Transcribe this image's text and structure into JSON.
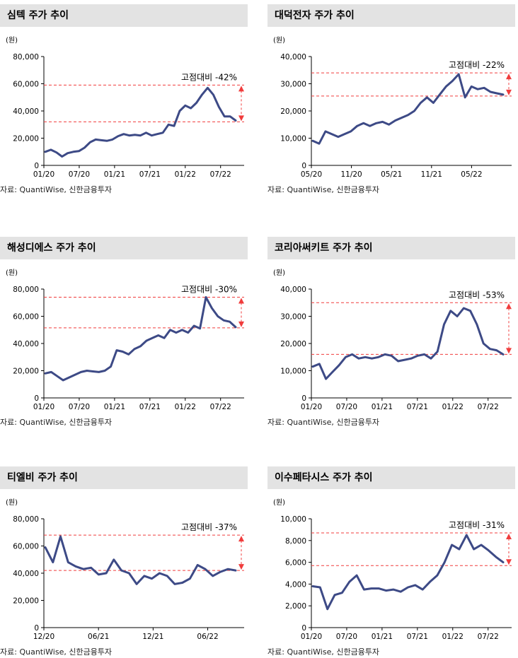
{
  "source": "자료: QuantiWise, 신한금융투자",
  "unit": "(원)",
  "colors": {
    "line": "#3d4a86",
    "ref": "#f03c3c",
    "title_bg": "#e3e3e3"
  },
  "chart_data": [
    {
      "type": "line",
      "title": "심텍 주가 추이",
      "ylim": [
        0,
        80000
      ],
      "yticks": [
        0,
        20000,
        40000,
        60000,
        80000
      ],
      "ytick_labels": [
        "0",
        "20,000",
        "40,000",
        "60,000",
        "80,000"
      ],
      "x_start": "2020-01",
      "x_end": "2022-11",
      "xticks": [
        "01/20",
        "07/20",
        "01/21",
        "07/21",
        "01/22",
        "07/22"
      ],
      "annotation": "고점대비 -42%",
      "ref_high": 59000,
      "ref_low": 32000,
      "series": [
        {
          "values": [
            10000,
            11500,
            9500,
            6500,
            9000,
            10000,
            10500,
            13000,
            17000,
            19000,
            18500,
            18000,
            19000,
            21500,
            23000,
            22000,
            22500,
            22000,
            24000,
            22000,
            23000,
            24000,
            30000,
            29000,
            40000,
            44000,
            42000,
            46000,
            52000,
            57000,
            52000,
            43000,
            36000,
            36000,
            33000
          ]
        }
      ]
    },
    {
      "type": "line",
      "title": "대덕전자 주가 추이",
      "ylim": [
        0,
        40000
      ],
      "yticks": [
        0,
        10000,
        20000,
        30000,
        40000
      ],
      "ytick_labels": [
        "0",
        "10,000",
        "20,000",
        "30,000",
        "40,000"
      ],
      "x_start": "2020-05",
      "x_end": "2022-11",
      "xticks": [
        "05/20",
        "11/20",
        "05/21",
        "11/21",
        "05/22"
      ],
      "annotation": "고점대비 -22%",
      "ref_high": 34000,
      "ref_low": 25500,
      "series": [
        {
          "values": [
            9000,
            8000,
            12500,
            11500,
            10500,
            11500,
            12500,
            14500,
            15500,
            14500,
            15500,
            16000,
            15000,
            16500,
            17500,
            18500,
            20000,
            23000,
            25000,
            23000,
            26000,
            29000,
            31000,
            33500,
            25000,
            29000,
            28000,
            28500,
            27000,
            26500,
            26000
          ]
        }
      ]
    },
    {
      "type": "line",
      "title": "해성디에스 주가 추이",
      "ylim": [
        0,
        80000
      ],
      "yticks": [
        0,
        20000,
        40000,
        60000,
        80000
      ],
      "ytick_labels": [
        "0",
        "20,000",
        "40,000",
        "60,000",
        "80,000"
      ],
      "x_start": "2020-01",
      "x_end": "2022-11",
      "xticks": [
        "01/20",
        "07/20",
        "01/21",
        "07/21",
        "01/22",
        "07/22"
      ],
      "annotation": "고점대비 -30%",
      "ref_high": 74000,
      "ref_low": 51500,
      "series": [
        {
          "values": [
            18000,
            19000,
            16000,
            13000,
            15000,
            17000,
            19000,
            20000,
            19500,
            19000,
            20000,
            23000,
            35000,
            34000,
            32000,
            36000,
            38000,
            42000,
            44000,
            46000,
            44000,
            50000,
            48000,
            50000,
            48000,
            53000,
            51000,
            74000,
            66000,
            60000,
            57000,
            56000,
            52000
          ]
        }
      ]
    },
    {
      "type": "line",
      "title": "코리아써키트 주가 추이",
      "ylim": [
        0,
        40000
      ],
      "yticks": [
        0,
        10000,
        20000,
        30000,
        40000
      ],
      "ytick_labels": [
        "0",
        "10,000",
        "20,000",
        "30,000",
        "40,000"
      ],
      "x_start": "2020-01",
      "x_end": "2022-11",
      "xticks": [
        "01/20",
        "07/20",
        "01/21",
        "07/21",
        "01/22",
        "07/22"
      ],
      "annotation": "고점대비 -53%",
      "ref_high": 35000,
      "ref_low": 16000,
      "series": [
        {
          "values": [
            11500,
            12500,
            7000,
            9500,
            12000,
            15000,
            16000,
            14500,
            15000,
            14500,
            15000,
            16000,
            15500,
            13500,
            14000,
            14500,
            15500,
            16000,
            14500,
            17000,
            27000,
            32000,
            30000,
            33000,
            32000,
            27000,
            20000,
            18000,
            17500,
            16000
          ]
        }
      ]
    },
    {
      "type": "line",
      "title": "티엘비 주가 추이",
      "ylim": [
        0,
        80000
      ],
      "yticks": [
        0,
        20000,
        40000,
        60000,
        80000
      ],
      "ytick_labels": [
        "0",
        "20,000",
        "40,000",
        "60,000",
        "80,000"
      ],
      "x_start": "2020-12",
      "x_end": "2022-10",
      "xticks": [
        "12/20",
        "06/21",
        "12/21",
        "06/22"
      ],
      "annotation": "고점대비 -37%",
      "ref_high": 68000,
      "ref_low": 42000,
      "series": [
        {
          "values": [
            59000,
            48000,
            67000,
            48000,
            45000,
            43000,
            44000,
            39000,
            40000,
            50000,
            42000,
            40000,
            32000,
            38000,
            36000,
            40000,
            38000,
            32000,
            33000,
            36000,
            46000,
            43000,
            38000,
            41000,
            43000,
            42000
          ]
        }
      ]
    },
    {
      "type": "line",
      "title": "이수페타시스 주가 추이",
      "ylim": [
        0,
        10000
      ],
      "yticks": [
        0,
        2000,
        4000,
        6000,
        8000,
        10000
      ],
      "ytick_labels": [
        "0",
        "2,000",
        "4,000",
        "6,000",
        "8,000",
        "10,000"
      ],
      "x_start": "2020-01",
      "x_end": "2022-11",
      "xticks": [
        "01/20",
        "07/20",
        "01/21",
        "07/21",
        "01/22",
        "07/22"
      ],
      "annotation": "고점대비 -31%",
      "ref_high": 8700,
      "ref_low": 5700,
      "series": [
        {
          "values": [
            3800,
            3700,
            1700,
            3000,
            3200,
            4200,
            4800,
            3500,
            3600,
            3600,
            3400,
            3500,
            3300,
            3700,
            3900,
            3500,
            4200,
            4800,
            6000,
            7600,
            7200,
            8500,
            7200,
            7600,
            7100,
            6500,
            6000
          ]
        }
      ]
    }
  ]
}
